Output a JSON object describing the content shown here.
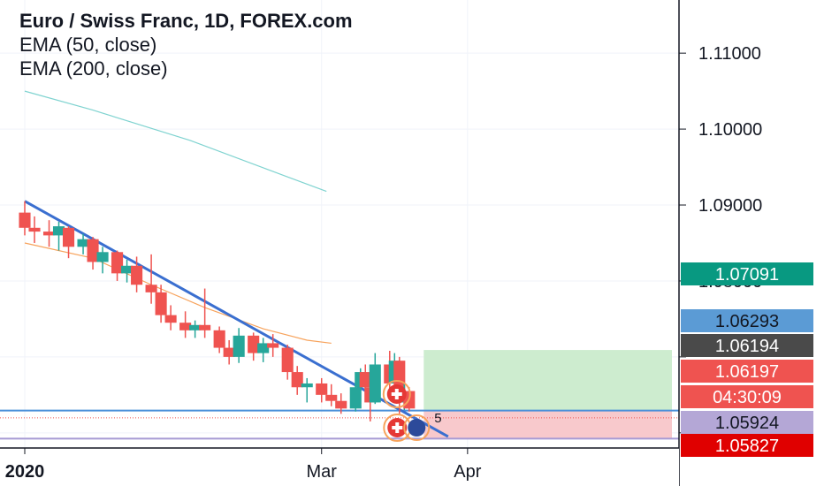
{
  "chart_data": {
    "type": "candlestick",
    "symbol_title": "Euro / Swiss Franc, 1D, FOREX.com",
    "indicators": [
      "EMA (50, close)",
      "EMA (200, close)"
    ],
    "y_axis": {
      "tick_labels": [
        "1.11000",
        "1.10000",
        "1.09000",
        "1.08000"
      ],
      "tick_values": [
        1.11,
        1.1,
        1.09,
        1.08
      ],
      "range": [
        1.058,
        1.117
      ]
    },
    "x_axis": {
      "tick_labels": [
        "2020",
        "Mar",
        "Apr"
      ],
      "tick_dates": [
        "2020-01-01",
        "2020-03-02",
        "2020-04-01"
      ],
      "range": [
        "2020-01-01",
        "2020-05-13"
      ]
    },
    "ema_50": {
      "dates": [
        "2020-01-01",
        "2020-01-15",
        "2020-01-27",
        "2020-02-07",
        "2020-02-19",
        "2020-02-28",
        "2020-03-04"
      ],
      "values": [
        1.085,
        1.083,
        1.0795,
        1.0765,
        1.0737,
        1.0722,
        1.0718
      ]
    },
    "ema_200": {
      "dates": [
        "2020-01-01",
        "2020-01-15",
        "2020-02-04",
        "2020-02-24",
        "2020-03-03"
      ],
      "values": [
        1.105,
        1.1025,
        1.0985,
        1.0937,
        1.0918
      ]
    },
    "candles": [
      {
        "date": "2020-01-01",
        "open": 1.089,
        "high": 1.0905,
        "low": 1.086,
        "close": 1.087
      },
      {
        "date": "2020-01-03",
        "open": 1.087,
        "high": 1.0885,
        "low": 1.085,
        "close": 1.0865
      },
      {
        "date": "2020-01-06",
        "open": 1.0865,
        "high": 1.088,
        "low": 1.0845,
        "close": 1.086
      },
      {
        "date": "2020-01-08",
        "open": 1.086,
        "high": 1.0878,
        "low": 1.084,
        "close": 1.0872
      },
      {
        "date": "2020-01-10",
        "open": 1.087,
        "high": 1.0872,
        "low": 1.083,
        "close": 1.0845
      },
      {
        "date": "2020-01-13",
        "open": 1.0845,
        "high": 1.0862,
        "low": 1.0835,
        "close": 1.0855
      },
      {
        "date": "2020-01-15",
        "open": 1.0855,
        "high": 1.0858,
        "low": 1.0815,
        "close": 1.0825
      },
      {
        "date": "2020-01-17",
        "open": 1.0825,
        "high": 1.0845,
        "low": 1.081,
        "close": 1.0838
      },
      {
        "date": "2020-01-20",
        "open": 1.0838,
        "high": 1.084,
        "low": 1.08,
        "close": 1.081
      },
      {
        "date": "2020-01-22",
        "open": 1.081,
        "high": 1.0828,
        "low": 1.0798,
        "close": 1.082
      },
      {
        "date": "2020-01-24",
        "open": 1.082,
        "high": 1.0832,
        "low": 1.0785,
        "close": 1.0795
      },
      {
        "date": "2020-01-27",
        "open": 1.0795,
        "high": 1.0835,
        "low": 1.077,
        "close": 1.0785
      },
      {
        "date": "2020-01-29",
        "open": 1.0785,
        "high": 1.0795,
        "low": 1.0745,
        "close": 1.0755
      },
      {
        "date": "2020-01-31",
        "open": 1.0755,
        "high": 1.0768,
        "low": 1.0735,
        "close": 1.0745
      },
      {
        "date": "2020-02-03",
        "open": 1.0745,
        "high": 1.076,
        "low": 1.0725,
        "close": 1.0735
      },
      {
        "date": "2020-02-05",
        "open": 1.0735,
        "high": 1.0748,
        "low": 1.0725,
        "close": 1.0742
      },
      {
        "date": "2020-02-07",
        "open": 1.0742,
        "high": 1.079,
        "low": 1.0725,
        "close": 1.0735
      },
      {
        "date": "2020-02-10",
        "open": 1.0735,
        "high": 1.074,
        "low": 1.0705,
        "close": 1.0712
      },
      {
        "date": "2020-02-12",
        "open": 1.0712,
        "high": 1.0722,
        "low": 1.069,
        "close": 1.07
      },
      {
        "date": "2020-02-14",
        "open": 1.07,
        "high": 1.0738,
        "low": 1.0692,
        "close": 1.0728
      },
      {
        "date": "2020-02-17",
        "open": 1.0728,
        "high": 1.0732,
        "low": 1.0695,
        "close": 1.0705
      },
      {
        "date": "2020-02-19",
        "open": 1.0705,
        "high": 1.0725,
        "low": 1.0693,
        "close": 1.0718
      },
      {
        "date": "2020-02-21",
        "open": 1.0718,
        "high": 1.073,
        "low": 1.07,
        "close": 1.0712
      },
      {
        "date": "2020-02-24",
        "open": 1.0712,
        "high": 1.0716,
        "low": 1.067,
        "close": 1.068
      },
      {
        "date": "2020-02-26",
        "open": 1.068,
        "high": 1.0688,
        "low": 1.065,
        "close": 1.066
      },
      {
        "date": "2020-02-28",
        "open": 1.066,
        "high": 1.0672,
        "low": 1.064,
        "close": 1.0665
      },
      {
        "date": "2020-03-02",
        "open": 1.0665,
        "high": 1.0672,
        "low": 1.064,
        "close": 1.065
      },
      {
        "date": "2020-03-04",
        "open": 1.065,
        "high": 1.0664,
        "low": 1.0635,
        "close": 1.0642
      },
      {
        "date": "2020-03-06",
        "open": 1.0642,
        "high": 1.0652,
        "low": 1.0625,
        "close": 1.0632
      },
      {
        "date": "2020-03-09",
        "open": 1.0632,
        "high": 1.067,
        "low": 1.0628,
        "close": 1.066
      },
      {
        "date": "2020-03-10",
        "open": 1.066,
        "high": 1.0685,
        "low": 1.0655,
        "close": 1.068
      },
      {
        "date": "2020-03-11",
        "open": 1.068,
        "high": 1.069,
        "low": 1.065,
        "close": 1.066
      },
      {
        "date": "2020-03-12",
        "open": 1.066,
        "high": 1.0665,
        "low": 1.0615,
        "close": 1.064
      },
      {
        "date": "2020-03-13",
        "open": 1.064,
        "high": 1.0705,
        "low": 1.0638,
        "close": 1.069
      },
      {
        "date": "2020-03-16",
        "open": 1.069,
        "high": 1.0708,
        "low": 1.0655,
        "close": 1.0665
      },
      {
        "date": "2020-03-17",
        "open": 1.0665,
        "high": 1.0705,
        "low": 1.065,
        "close": 1.0695
      },
      {
        "date": "2020-03-18",
        "open": 1.0695,
        "high": 1.07,
        "low": 1.0625,
        "close": 1.064
      },
      {
        "date": "2020-03-19",
        "open": 1.064,
        "high": 1.0665,
        "low": 1.063,
        "close": 1.0655
      },
      {
        "date": "2020-03-20",
        "open": 1.0655,
        "high": 1.066,
        "low": 1.0628,
        "close": 1.0632
      }
    ],
    "trendline": {
      "start": {
        "date": "2020-01-01",
        "value": 1.0905
      },
      "end": {
        "date": "2020-03-28",
        "value": 1.0595
      }
    },
    "horizontal_lines": [
      {
        "value": 1.06293,
        "color": "#4a90d9"
      },
      {
        "value": 1.05924,
        "color": "#a79bd4"
      }
    ],
    "position": {
      "start_date": "2020-03-23",
      "end_date": "2020-05-13",
      "entry": 1.06293,
      "target": 1.07091,
      "stop": 1.05924,
      "profit_color": "#cdeccf",
      "loss_color": "#f8c9cc"
    },
    "price_labels": [
      {
        "value": 1.07091,
        "text": "1.07091",
        "bg": "#089981",
        "fg": "#ffffff"
      },
      {
        "value": 1.06293,
        "text": "1.06293",
        "bg": "#5b9bd5",
        "fg": "#131722"
      },
      {
        "value": 1.06194,
        "text": "1.06194",
        "bg": "#4a4a4a",
        "fg": "#ffffff"
      },
      {
        "value": 1.06197,
        "text": "1.06197",
        "bg": "#ef5350",
        "fg": "#ffffff"
      },
      {
        "value": 1.05924,
        "text": "1.05924",
        "bg": "#b4a7d6",
        "fg": "#131722"
      },
      {
        "value": 1.05827,
        "text": "1.05827",
        "bg": "#e00000",
        "fg": "#ffffff"
      }
    ],
    "countdown": "04:30:09",
    "events": [
      {
        "date": "2020-03-12",
        "kind": "flag",
        "count": ""
      },
      {
        "date": "2020-03-11",
        "kind": "flag",
        "count": "5"
      }
    ],
    "colors": {
      "up": "#26a69a",
      "down": "#ef5350",
      "ema50": "#f7a35c",
      "ema200": "#7fd3d0",
      "trend": "#3a6fd0"
    }
  }
}
